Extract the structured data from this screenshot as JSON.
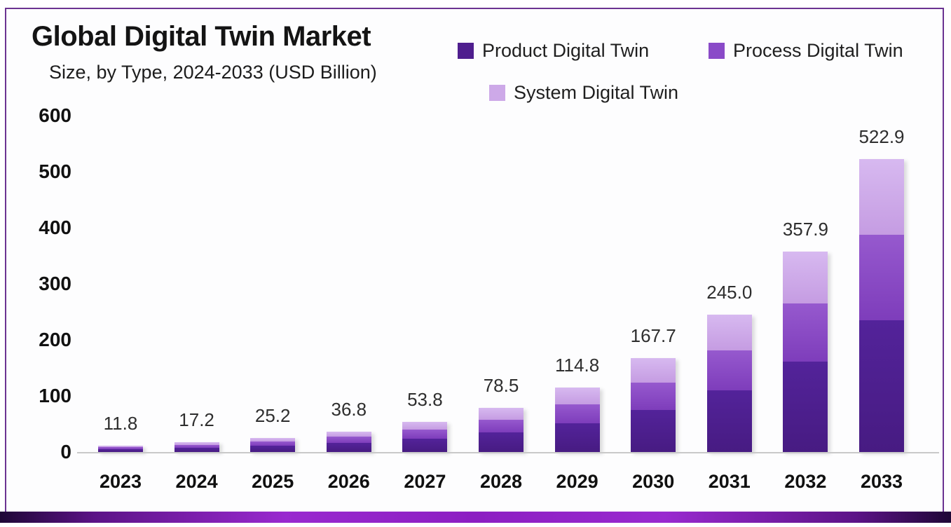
{
  "page": {
    "frame_border_color": "#6b3391",
    "bottom_bar_colors": [
      "#1f0736",
      "#9929cf",
      "#8c1ec2"
    ],
    "background": "#ffffff"
  },
  "header": {
    "title": "Global Digital Twin Market",
    "subtitle": "Size, by Type, 2024-2033 (USD Billion)"
  },
  "chart_data": {
    "type": "bar",
    "variant": "stacked",
    "title": "Global Digital Twin Market",
    "subtitle": "Size, by Type, 2024-2033 (USD Billion)",
    "unit": "USD Billion",
    "categories": [
      "2023",
      "2024",
      "2025",
      "2026",
      "2027",
      "2028",
      "2029",
      "2030",
      "2031",
      "2032",
      "2033"
    ],
    "totals": [
      11.8,
      17.2,
      25.2,
      36.8,
      53.8,
      78.5,
      114.8,
      167.7,
      245.0,
      357.9,
      522.9
    ],
    "total_labels": [
      "11.8",
      "17.2",
      "25.2",
      "36.8",
      "53.8",
      "78.5",
      "114.8",
      "167.7",
      "245.0",
      "357.9",
      "522.9"
    ],
    "segment_values_estimated": true,
    "series": [
      {
        "name": "Product Digital Twin",
        "color": "#4f1e8e",
        "color_top": "#53239a",
        "color_bottom": "#471b82",
        "values": [
          5.3,
          7.7,
          11.3,
          16.6,
          24.2,
          35.3,
          51.7,
          75.5,
          110.3,
          161.1,
          235.3
        ]
      },
      {
        "name": "Process Digital Twin",
        "color": "#8a4ac8",
        "color_top": "#9659ce",
        "color_bottom": "#7e3dbb",
        "values": [
          3.4,
          5.0,
          7.3,
          10.7,
          15.6,
          22.8,
          33.3,
          48.6,
          71.1,
          103.8,
          151.6
        ]
      },
      {
        "name": "System Digital Twin",
        "color": "#cda9e8",
        "color_top": "#d7b9f0",
        "color_bottom": "#c59ce2",
        "values": [
          3.1,
          4.5,
          6.6,
          9.5,
          14.0,
          20.4,
          29.8,
          43.6,
          63.6,
          93.0,
          136.0
        ]
      }
    ],
    "y_axis": {
      "min": 0,
      "max": 600,
      "step": 100,
      "tick_labels": [
        "600",
        "500",
        "400",
        "300",
        "200",
        "100",
        "0"
      ]
    },
    "grid": false,
    "legend_position": "top-right",
    "value_labels": "totals shown above each bar"
  }
}
